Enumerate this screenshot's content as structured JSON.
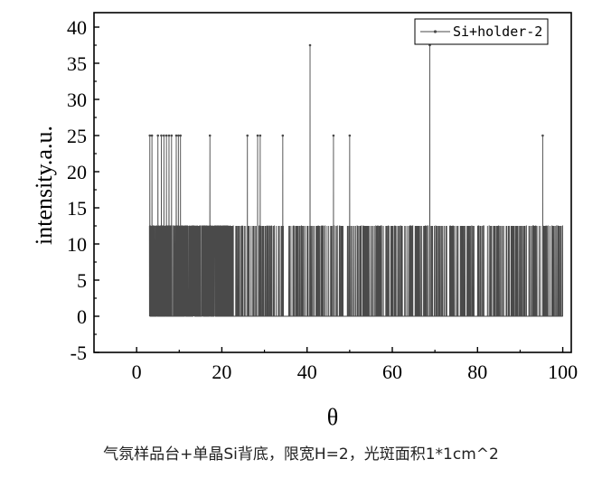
{
  "caption": "气氛样品台+单晶Si背底，限宽H=2，光斑面积1*1cm^2",
  "chart_data": {
    "type": "line",
    "title": "",
    "xlabel": "θ",
    "ylabel": "intensity.a.u.",
    "xlim": [
      -10,
      102
    ],
    "ylim": [
      -5,
      42
    ],
    "x_ticks": [
      0,
      20,
      40,
      60,
      80,
      100
    ],
    "x_tick_labels": [
      "0",
      "20",
      "40",
      "60",
      "80",
      "100"
    ],
    "y_ticks": [
      -5,
      0,
      5,
      10,
      15,
      20,
      25,
      30,
      35,
      40
    ],
    "y_tick_labels": [
      "-5",
      "0",
      "5",
      "10",
      "15",
      "20",
      "25",
      "30",
      "35",
      "40"
    ],
    "grid": false,
    "legend_position": "top-right",
    "series": [
      {
        "name": "Si+holder-2",
        "color": "#4a4a4a",
        "x_range": [
          3,
          100
        ],
        "levels": [
          0,
          12.5,
          25,
          37.5
        ],
        "dense_region": [
          3,
          22
        ],
        "peaks": [
          {
            "x": 40.7,
            "y": 37.5
          },
          {
            "x": 68.8,
            "y": 37.5
          },
          {
            "x": 3.1,
            "y": 25
          },
          {
            "x": 3.6,
            "y": 25
          },
          {
            "x": 5.0,
            "y": 25
          },
          {
            "x": 5.8,
            "y": 25
          },
          {
            "x": 6.4,
            "y": 25
          },
          {
            "x": 7.0,
            "y": 25
          },
          {
            "x": 7.6,
            "y": 25
          },
          {
            "x": 8.2,
            "y": 25
          },
          {
            "x": 9.3,
            "y": 25
          },
          {
            "x": 9.8,
            "y": 25
          },
          {
            "x": 10.3,
            "y": 25
          },
          {
            "x": 17.2,
            "y": 25
          },
          {
            "x": 26.0,
            "y": 25
          },
          {
            "x": 28.4,
            "y": 25
          },
          {
            "x": 29.0,
            "y": 25
          },
          {
            "x": 34.3,
            "y": 25
          },
          {
            "x": 46.2,
            "y": 25
          },
          {
            "x": 50.0,
            "y": 25
          },
          {
            "x": 95.3,
            "y": 25
          }
        ]
      }
    ]
  }
}
